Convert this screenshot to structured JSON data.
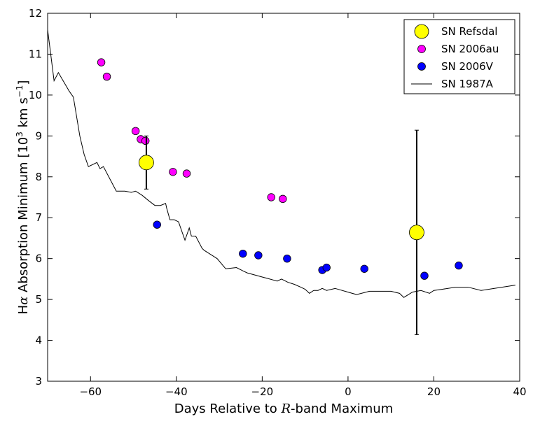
{
  "chart_data": {
    "type": "scatter",
    "title": "",
    "xlabel_parts": {
      "pre": "Days Relative to ",
      "var": "R",
      "post": "-band Maximum"
    },
    "ylabel_parts": {
      "h": "H",
      "alpha": "α",
      "mid": " Absorption Minimum [10",
      "exp": "3",
      "unit": " km s",
      "neg": "−1",
      "close": "]"
    },
    "xlim": [
      -70,
      40
    ],
    "ylim": [
      3,
      12
    ],
    "xticks": [
      -60,
      -40,
      -20,
      0,
      20,
      40
    ],
    "xtick_labels": [
      "−60",
      "−40",
      "−20",
      "0",
      "20",
      "40"
    ],
    "yticks": [
      3,
      4,
      5,
      6,
      7,
      8,
      9,
      10,
      11,
      12
    ],
    "ytick_labels": [
      "3",
      "4",
      "5",
      "6",
      "7",
      "8",
      "9",
      "10",
      "11",
      "12"
    ],
    "legend_position": "top-right",
    "series": [
      {
        "name": "SN Refsdal",
        "kind": "marker",
        "color": "#ffff00",
        "marker_size": "large",
        "points": [
          {
            "x": -47.0,
            "y": 8.35,
            "yerr_low": 7.7,
            "yerr_high": 9.0
          },
          {
            "x": 16.0,
            "y": 6.64,
            "yerr_low": 4.14,
            "yerr_high": 9.14
          }
        ]
      },
      {
        "name": "SN 2006au",
        "kind": "marker",
        "color": "#ff00ff",
        "marker_size": "small",
        "points": [
          {
            "x": -57.5,
            "y": 10.8
          },
          {
            "x": -56.2,
            "y": 10.45
          },
          {
            "x": -49.5,
            "y": 9.12
          },
          {
            "x": -48.3,
            "y": 8.92
          },
          {
            "x": -47.2,
            "y": 8.88
          },
          {
            "x": -40.8,
            "y": 8.12
          },
          {
            "x": -37.6,
            "y": 8.08
          },
          {
            "x": -17.9,
            "y": 7.5
          },
          {
            "x": -15.2,
            "y": 7.46
          }
        ]
      },
      {
        "name": "SN 2006V",
        "kind": "marker",
        "color": "#0000ff",
        "marker_size": "small",
        "points": [
          {
            "x": -44.5,
            "y": 6.83
          },
          {
            "x": -24.5,
            "y": 6.12
          },
          {
            "x": -20.9,
            "y": 6.08
          },
          {
            "x": -14.2,
            "y": 6.0
          },
          {
            "x": -6.0,
            "y": 5.72
          },
          {
            "x": -5.0,
            "y": 5.78
          },
          {
            "x": 3.8,
            "y": 5.75
          },
          {
            "x": 17.8,
            "y": 5.58
          },
          {
            "x": 25.8,
            "y": 5.83
          }
        ]
      },
      {
        "name": "SN 1987A",
        "kind": "line",
        "color": "#000000",
        "x": [
          -70,
          -68.5,
          -67.5,
          -65,
          -64,
          -62.5,
          -61.5,
          -60.5,
          -58.5,
          -57.8,
          -57,
          -54,
          -53.5,
          -53,
          -52,
          -50.5,
          -49.5,
          -48,
          -46.5,
          -45,
          -43.7,
          -42.5,
          -42.3,
          -41.5,
          -40.5,
          -39.5,
          -38,
          -37,
          -36.5,
          -35.5,
          -35,
          -34,
          -33.5,
          -32,
          -30.5,
          -28.5,
          -26,
          -24.5,
          -23.5,
          -20,
          -16.5,
          -15.5,
          -14,
          -12.5,
          -11,
          -10,
          -9,
          -8,
          -7,
          -6,
          -5,
          -3,
          0,
          2,
          5,
          10,
          12,
          13,
          15,
          17,
          19,
          20,
          22,
          25,
          28,
          31,
          34,
          39
        ],
        "y": [
          11.6,
          10.35,
          10.55,
          10.1,
          9.95,
          9.0,
          8.55,
          8.25,
          8.35,
          8.2,
          8.25,
          7.65,
          7.65,
          7.65,
          7.65,
          7.62,
          7.65,
          7.55,
          7.42,
          7.3,
          7.3,
          7.35,
          7.25,
          6.95,
          6.95,
          6.9,
          6.45,
          6.75,
          6.55,
          6.55,
          6.45,
          6.25,
          6.2,
          6.1,
          6.0,
          5.75,
          5.78,
          5.7,
          5.65,
          5.55,
          5.45,
          5.5,
          5.42,
          5.37,
          5.3,
          5.25,
          5.15,
          5.22,
          5.22,
          5.27,
          5.22,
          5.27,
          5.18,
          5.12,
          5.2,
          5.2,
          5.15,
          5.05,
          5.18,
          5.22,
          5.15,
          5.22,
          5.25,
          5.3,
          5.3,
          5.22,
          5.27,
          5.35
        ]
      }
    ]
  }
}
